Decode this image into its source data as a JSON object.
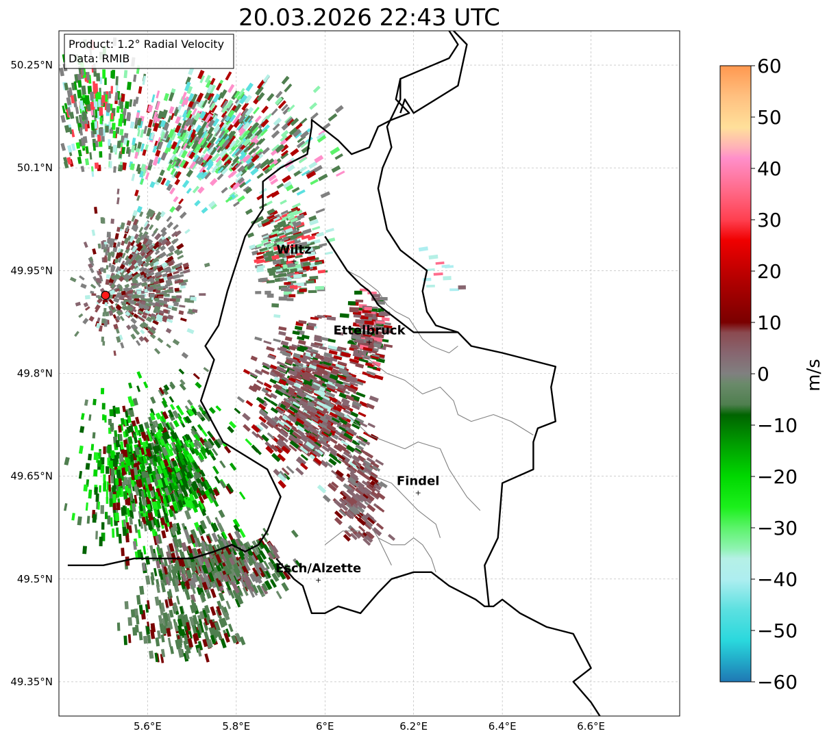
{
  "title": "20.03.2026 22:43 UTC",
  "info": {
    "product": "Product: 1.2° Radial Velocity",
    "source": "Data: RMIB"
  },
  "map_extent": {
    "lon": [
      5.4,
      6.8
    ],
    "lat": [
      49.3,
      50.3
    ]
  },
  "lon_ticks": [
    {
      "value": 5.6,
      "label": "5.6°E"
    },
    {
      "value": 5.8,
      "label": "5.8°E"
    },
    {
      "value": 6.0,
      "label": "6°E"
    },
    {
      "value": 6.2,
      "label": "6.2°E"
    },
    {
      "value": 6.4,
      "label": "6.4°E"
    },
    {
      "value": 6.6,
      "label": "6.6°E"
    }
  ],
  "lat_ticks": [
    {
      "value": 50.25,
      "label": "50.25°N"
    },
    {
      "value": 50.1,
      "label": "50.1°N"
    },
    {
      "value": 49.95,
      "label": "49.95°N"
    },
    {
      "value": 49.8,
      "label": "49.8°N"
    },
    {
      "value": 49.65,
      "label": "49.65°N"
    },
    {
      "value": 49.5,
      "label": "49.5°N"
    },
    {
      "value": 49.35,
      "label": "49.35°N"
    }
  ],
  "radar": {
    "lon": 5.505,
    "lat": 49.914,
    "color": "#ff1a1a"
  },
  "cities": [
    {
      "name": "Wiltz",
      "lon": 5.93,
      "lat": 49.965
    },
    {
      "name": "Ettelbruck",
      "lon": 6.1,
      "lat": 49.847
    },
    {
      "name": "Findel",
      "lon": 6.21,
      "lat": 49.627
    },
    {
      "name": "Esch/Alzette",
      "lon": 5.985,
      "lat": 49.5
    }
  ],
  "colorbar": {
    "label": "m/s",
    "min": -60,
    "max": 60,
    "ticks": [
      {
        "value": 60,
        "label": "60"
      },
      {
        "value": 50,
        "label": "50"
      },
      {
        "value": 40,
        "label": "40"
      },
      {
        "value": 30,
        "label": "30"
      },
      {
        "value": 20,
        "label": "20"
      },
      {
        "value": 10,
        "label": "10"
      },
      {
        "value": 0,
        "label": "0"
      },
      {
        "value": -10,
        "label": "−10"
      },
      {
        "value": -20,
        "label": "−20"
      },
      {
        "value": -30,
        "label": "−30"
      },
      {
        "value": -40,
        "label": "−40"
      },
      {
        "value": -50,
        "label": "−50"
      },
      {
        "value": -60,
        "label": "−60"
      }
    ],
    "stops": [
      {
        "value": -60,
        "color": "#1f77b4"
      },
      {
        "value": -56,
        "color": "#22a9c8"
      },
      {
        "value": -52,
        "color": "#2ad8dd"
      },
      {
        "value": -46,
        "color": "#5be0e0"
      },
      {
        "value": -40,
        "color": "#aeeef0"
      },
      {
        "value": -36,
        "color": "#b5f0e6"
      },
      {
        "value": -34,
        "color": "#8ef3b0"
      },
      {
        "value": -30,
        "color": "#5cf36b"
      },
      {
        "value": -26,
        "color": "#1cf01c"
      },
      {
        "value": -20,
        "color": "#00d800"
      },
      {
        "value": -14,
        "color": "#00a000"
      },
      {
        "value": -8,
        "color": "#006400"
      },
      {
        "value": -6,
        "color": "#4f7f4f"
      },
      {
        "value": -2,
        "color": "#6a8a6a"
      },
      {
        "value": 0,
        "color": "#808080"
      },
      {
        "value": 4,
        "color": "#876670"
      },
      {
        "value": 8,
        "color": "#8b4a50"
      },
      {
        "value": 10,
        "color": "#7a0000"
      },
      {
        "value": 18,
        "color": "#b00000"
      },
      {
        "value": 26,
        "color": "#f00000"
      },
      {
        "value": 30,
        "color": "#ff4050"
      },
      {
        "value": 36,
        "color": "#ff6c8c"
      },
      {
        "value": 42,
        "color": "#ff8fca"
      },
      {
        "value": 44,
        "color": "#ffb0b8"
      },
      {
        "value": 48,
        "color": "#ffe09a"
      },
      {
        "value": 54,
        "color": "#ffc080"
      },
      {
        "value": 60,
        "color": "#ff9850"
      }
    ]
  },
  "borders": {
    "country": [
      [
        [
          6.28,
          50.3
        ],
        [
          6.3,
          50.28
        ],
        [
          6.28,
          50.26
        ],
        [
          6.17,
          50.23
        ],
        [
          6.16,
          50.2
        ],
        [
          6.19,
          50.18
        ],
        [
          6.15,
          50.17
        ],
        [
          6.12,
          50.16
        ],
        [
          6.1,
          50.13
        ],
        [
          6.06,
          50.12
        ],
        [
          6.03,
          50.14
        ],
        [
          6.01,
          50.15
        ],
        [
          5.97,
          50.17
        ],
        [
          5.97,
          50.16
        ],
        [
          5.96,
          50.12
        ],
        [
          5.9,
          50.1
        ],
        [
          5.86,
          50.08
        ],
        [
          5.86,
          50.04
        ],
        [
          5.82,
          50.0
        ],
        [
          5.8,
          49.96
        ],
        [
          5.78,
          49.92
        ],
        [
          5.76,
          49.87
        ],
        [
          5.73,
          49.84
        ],
        [
          5.75,
          49.82
        ],
        [
          5.72,
          49.76
        ],
        [
          5.77,
          49.7
        ],
        [
          5.82,
          49.68
        ],
        [
          5.87,
          49.66
        ],
        [
          5.9,
          49.62
        ],
        [
          5.87,
          49.57
        ],
        [
          5.85,
          49.55
        ],
        [
          5.82,
          49.54
        ],
        [
          5.79,
          49.55
        ],
        [
          5.75,
          49.54
        ],
        [
          5.7,
          49.53
        ],
        [
          5.63,
          49.53
        ],
        [
          5.57,
          49.53
        ],
        [
          5.5,
          49.52
        ],
        [
          5.45,
          49.52
        ],
        [
          5.42,
          49.52
        ]
      ],
      [
        [
          5.89,
          49.53
        ],
        [
          5.93,
          49.5
        ],
        [
          5.95,
          49.49
        ],
        [
          5.97,
          49.45
        ],
        [
          6.0,
          49.45
        ],
        [
          6.03,
          49.46
        ],
        [
          6.08,
          49.45
        ],
        [
          6.12,
          49.48
        ],
        [
          6.15,
          49.5
        ],
        [
          6.2,
          49.51
        ],
        [
          6.24,
          49.51
        ],
        [
          6.28,
          49.49
        ],
        [
          6.34,
          49.47
        ],
        [
          6.36,
          49.46
        ],
        [
          6.38,
          49.46
        ],
        [
          6.4,
          49.47
        ],
        [
          6.44,
          49.45
        ],
        [
          6.5,
          49.43
        ],
        [
          6.56,
          49.42
        ],
        [
          6.6,
          49.37
        ],
        [
          6.56,
          49.35
        ],
        [
          6.6,
          49.32
        ],
        [
          6.62,
          49.3
        ]
      ],
      [
        [
          6.37,
          49.46
        ],
        [
          6.36,
          49.52
        ],
        [
          6.39,
          49.56
        ],
        [
          6.4,
          49.64
        ],
        [
          6.47,
          49.66
        ],
        [
          6.47,
          49.7
        ],
        [
          6.48,
          49.72
        ],
        [
          6.52,
          49.73
        ],
        [
          6.51,
          49.78
        ],
        [
          6.52,
          49.81
        ],
        [
          6.46,
          49.82
        ],
        [
          6.4,
          49.83
        ],
        [
          6.33,
          49.84
        ],
        [
          6.3,
          49.86
        ],
        [
          6.25,
          49.87
        ],
        [
          6.23,
          49.89
        ],
        [
          6.22,
          49.92
        ],
        [
          6.23,
          49.95
        ],
        [
          6.21,
          49.96
        ],
        [
          6.19,
          49.97
        ],
        [
          6.17,
          49.98
        ],
        [
          6.14,
          50.01
        ],
        [
          6.13,
          50.04
        ],
        [
          6.12,
          50.07
        ],
        [
          6.13,
          50.1
        ],
        [
          6.15,
          50.13
        ],
        [
          6.14,
          50.16
        ],
        [
          6.17,
          50.2
        ],
        [
          6.17,
          50.23
        ]
      ],
      [
        [
          6.29,
          50.3
        ],
        [
          6.32,
          50.28
        ],
        [
          6.31,
          50.25
        ],
        [
          6.3,
          50.22
        ],
        [
          6.25,
          50.2
        ],
        [
          6.2,
          50.18
        ],
        [
          6.18,
          50.2
        ],
        [
          6.17,
          50.18
        ]
      ],
      [
        [
          6.0,
          50.0
        ],
        [
          6.05,
          49.95
        ],
        [
          6.08,
          49.93
        ],
        [
          6.1,
          49.92
        ],
        [
          6.12,
          49.9
        ],
        [
          6.16,
          49.88
        ],
        [
          6.2,
          49.86
        ],
        [
          6.25,
          49.86
        ],
        [
          6.3,
          49.86
        ]
      ]
    ],
    "district": [
      [
        [
          6.03,
          49.97
        ],
        [
          6.05,
          49.95
        ],
        [
          6.08,
          49.94
        ],
        [
          6.12,
          49.92
        ],
        [
          6.14,
          49.9
        ],
        [
          6.16,
          49.89
        ],
        [
          6.19,
          49.88
        ],
        [
          6.22,
          49.85
        ],
        [
          6.24,
          49.84
        ],
        [
          6.28,
          49.83
        ],
        [
          6.3,
          49.84
        ]
      ],
      [
        [
          6.06,
          49.85
        ],
        [
          6.1,
          49.82
        ],
        [
          6.14,
          49.8
        ],
        [
          6.18,
          49.79
        ],
        [
          6.22,
          49.77
        ],
        [
          6.26,
          49.78
        ],
        [
          6.29,
          49.76
        ],
        [
          6.3,
          49.74
        ],
        [
          6.33,
          49.73
        ],
        [
          6.38,
          49.74
        ],
        [
          6.42,
          49.73
        ],
        [
          6.47,
          49.71
        ]
      ],
      [
        [
          6.05,
          49.74
        ],
        [
          6.1,
          49.71
        ],
        [
          6.14,
          49.7
        ],
        [
          6.18,
          49.69
        ],
        [
          6.21,
          49.7
        ],
        [
          6.26,
          49.69
        ],
        [
          6.28,
          49.66
        ],
        [
          6.3,
          49.64
        ],
        [
          6.32,
          49.62
        ],
        [
          6.35,
          49.6
        ]
      ],
      [
        [
          6.05,
          49.69
        ],
        [
          6.08,
          49.66
        ],
        [
          6.11,
          49.65
        ],
        [
          6.15,
          49.64
        ],
        [
          6.18,
          49.62
        ],
        [
          6.21,
          49.6
        ],
        [
          6.23,
          49.59
        ],
        [
          6.25,
          49.58
        ],
        [
          6.26,
          49.56
        ]
      ],
      [
        [
          6.07,
          49.6
        ],
        [
          6.1,
          49.58
        ],
        [
          6.12,
          49.56
        ],
        [
          6.15,
          49.55
        ],
        [
          6.18,
          49.55
        ],
        [
          6.2,
          49.56
        ],
        [
          6.22,
          49.55
        ],
        [
          6.24,
          49.53
        ],
        [
          6.25,
          49.51
        ]
      ],
      [
        [
          6.0,
          49.55
        ],
        [
          6.04,
          49.57
        ],
        [
          6.08,
          49.57
        ]
      ],
      [
        [
          6.12,
          49.56
        ],
        [
          6.15,
          49.52
        ]
      ]
    ]
  },
  "echo_regions": [
    {
      "cx": 5.75,
      "cy": 50.14,
      "rx": 0.34,
      "ry": 0.12,
      "count": 700,
      "palette": [
        14,
        12,
        12,
        5,
        7,
        22,
        18,
        6,
        3
      ]
    },
    {
      "cx": 5.48,
      "cy": 50.18,
      "rx": 0.12,
      "ry": 0.12,
      "count": 220,
      "palette": [
        12,
        10,
        14,
        8,
        4,
        20
      ]
    },
    {
      "cx": 5.92,
      "cy": 49.98,
      "rx": 0.11,
      "ry": 0.1,
      "count": 320,
      "palette": [
        12,
        12,
        14,
        14,
        5,
        6,
        20,
        18
      ]
    },
    {
      "cx": 5.58,
      "cy": 49.94,
      "rx": 0.16,
      "ry": 0.13,
      "count": 700,
      "palette": [
        14,
        13,
        13,
        14,
        15,
        16,
        17,
        5
      ]
    },
    {
      "cx": 5.97,
      "cy": 49.76,
      "rx": 0.17,
      "ry": 0.15,
      "count": 820,
      "palette": [
        15,
        16,
        15,
        16,
        14,
        5,
        11,
        18
      ]
    },
    {
      "cx": 6.1,
      "cy": 49.86,
      "rx": 0.06,
      "ry": 0.08,
      "count": 160,
      "palette": [
        15,
        16,
        14,
        11,
        18,
        21
      ]
    },
    {
      "cx": 5.62,
      "cy": 49.66,
      "rx": 0.22,
      "ry": 0.16,
      "count": 950,
      "palette": [
        11,
        10,
        9,
        12,
        13,
        8,
        11,
        17
      ]
    },
    {
      "cx": 5.75,
      "cy": 49.52,
      "rx": 0.22,
      "ry": 0.07,
      "count": 520,
      "palette": [
        12,
        12,
        13,
        14,
        15,
        11,
        17
      ]
    },
    {
      "cx": 5.68,
      "cy": 49.43,
      "rx": 0.18,
      "ry": 0.06,
      "count": 180,
      "palette": [
        12,
        12,
        13,
        11,
        17
      ]
    },
    {
      "cx": 6.08,
      "cy": 49.62,
      "rx": 0.08,
      "ry": 0.1,
      "count": 140,
      "palette": [
        15,
        16,
        15,
        14,
        17
      ]
    },
    {
      "cx": 6.26,
      "cy": 49.95,
      "rx": 0.07,
      "ry": 0.06,
      "count": 12,
      "palette": [
        21,
        15,
        5,
        4
      ]
    }
  ]
}
